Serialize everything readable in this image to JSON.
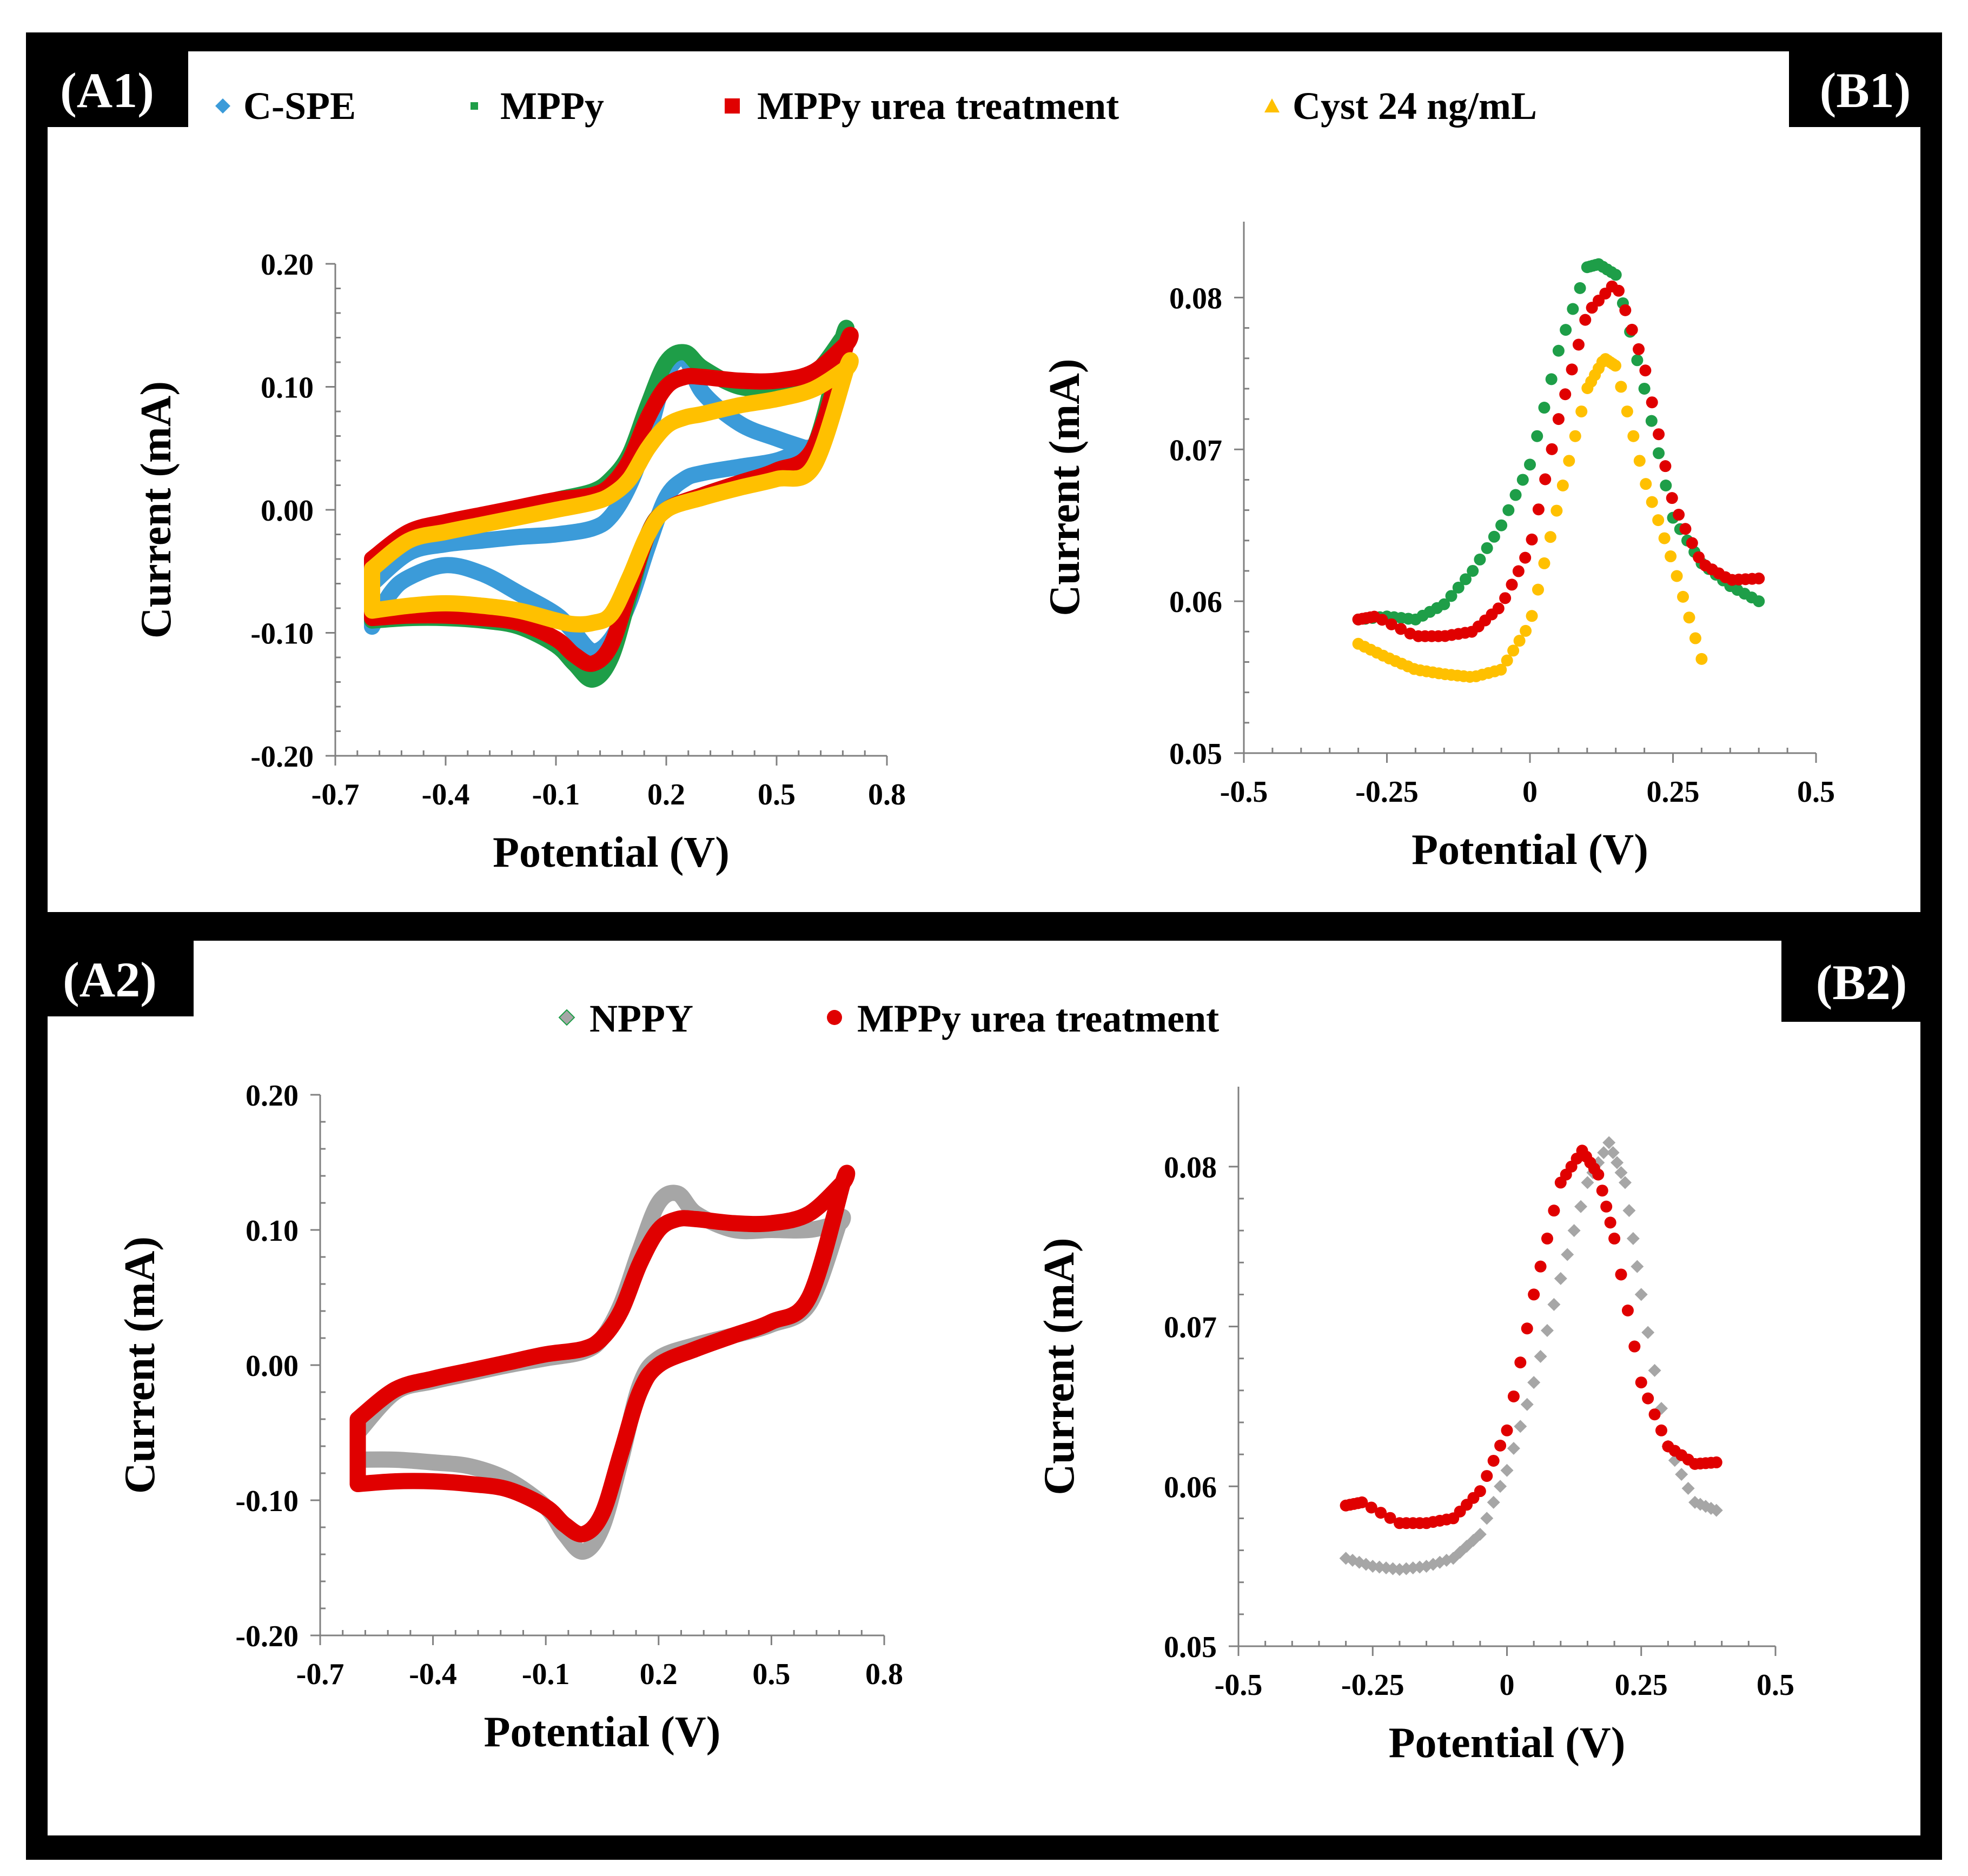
{
  "colors": {
    "C-SPE": "#3B9BD9",
    "MPPy": "#1E9E48",
    "MPPy urea treatment": "#E00000",
    "Cyst 24 ng/mL": "#FFC000",
    "NPPY": "#A6A6A6",
    "frame": "#000000"
  },
  "panels": {
    "A1": {
      "label": "(A1)"
    },
    "B1": {
      "label": "(B1)"
    },
    "A2": {
      "label": "(A2)"
    },
    "B2": {
      "label": "(B2)"
    }
  },
  "legend_top": [
    {
      "name": "C-SPE",
      "marker": "diamond"
    },
    {
      "name": "MPPy",
      "marker": "square-small"
    },
    {
      "name": "MPPy urea treatment",
      "marker": "square"
    },
    {
      "name": "Cyst 24 ng/mL",
      "marker": "triangle"
    }
  ],
  "legend_bottom": [
    {
      "name": "NPPY",
      "marker": "diamond"
    },
    {
      "name": "MPPy urea treatment",
      "marker": "circle"
    }
  ],
  "chart_data": [
    {
      "id": "A1",
      "type": "line",
      "xlabel": "Potential (V)",
      "ylabel": "Current (mA)",
      "xlim": [
        -0.7,
        0.8
      ],
      "ylim": [
        -0.2,
        0.2
      ],
      "xticks": [
        -0.7,
        -0.4,
        -0.1,
        0.2,
        0.5,
        0.8
      ],
      "xtick_labels": [
        "-0.7",
        "-0.4",
        "-0.1",
        "0.2",
        "0.5",
        "0.8"
      ],
      "yticks": [
        -0.2,
        -0.1,
        0.0,
        0.1,
        0.2
      ],
      "ytick_labels": [
        "-0.20",
        "-0.10",
        "0.00",
        "0.10",
        "0.20"
      ],
      "series": [
        {
          "name": "C-SPE",
          "x": [
            -0.6,
            -0.5,
            -0.4,
            -0.3,
            -0.2,
            -0.1,
            0.0,
            0.05,
            0.1,
            0.15,
            0.2,
            0.25,
            0.3,
            0.4,
            0.5,
            0.58,
            0.58,
            0.5,
            0.4,
            0.3,
            0.25,
            0.2,
            0.15,
            0.1,
            0.05,
            0.0,
            -0.05,
            -0.1,
            -0.2,
            -0.3,
            -0.4,
            -0.5,
            -0.55,
            -0.6
          ],
          "y": [
            -0.06,
            -0.035,
            -0.028,
            -0.025,
            -0.022,
            -0.02,
            -0.015,
            -0.005,
            0.02,
            0.06,
            0.11,
            0.123,
            0.095,
            0.07,
            0.058,
            0.05,
            0.05,
            0.04,
            0.035,
            0.03,
            0.025,
            0.01,
            -0.03,
            -0.075,
            -0.105,
            -0.115,
            -0.1,
            -0.085,
            -0.068,
            -0.052,
            -0.045,
            -0.055,
            -0.068,
            -0.095
          ]
        },
        {
          "name": "MPPy",
          "x": [
            -0.6,
            -0.5,
            -0.4,
            -0.3,
            -0.2,
            -0.1,
            0.0,
            0.05,
            0.1,
            0.15,
            0.2,
            0.25,
            0.3,
            0.4,
            0.5,
            0.6,
            0.68,
            0.68,
            0.6,
            0.5,
            0.4,
            0.3,
            0.2,
            0.15,
            0.1,
            0.05,
            0.0,
            -0.05,
            -0.1,
            -0.2,
            -0.3,
            -0.4,
            -0.5,
            -0.6
          ],
          "y": [
            -0.045,
            -0.02,
            -0.012,
            -0.005,
            0.0,
            0.008,
            0.015,
            0.025,
            0.045,
            0.085,
            0.12,
            0.128,
            0.115,
            0.1,
            0.1,
            0.11,
            0.14,
            0.14,
            0.05,
            0.032,
            0.022,
            0.012,
            0.0,
            -0.02,
            -0.07,
            -0.12,
            -0.138,
            -0.125,
            -0.11,
            -0.095,
            -0.09,
            -0.088,
            -0.088,
            -0.09
          ]
        },
        {
          "name": "MPPy urea treatment",
          "x": [
            -0.6,
            -0.5,
            -0.4,
            -0.3,
            -0.2,
            -0.1,
            0.0,
            0.05,
            0.1,
            0.15,
            0.2,
            0.25,
            0.3,
            0.4,
            0.5,
            0.6,
            0.69,
            0.69,
            0.6,
            0.5,
            0.4,
            0.3,
            0.2,
            0.15,
            0.1,
            0.05,
            0.0,
            -0.05,
            -0.1,
            -0.2,
            -0.3,
            -0.4,
            -0.5,
            -0.6
          ],
          "y": [
            -0.04,
            -0.018,
            -0.01,
            -0.004,
            0.002,
            0.008,
            0.012,
            0.02,
            0.04,
            0.075,
            0.1,
            0.108,
            0.108,
            0.105,
            0.105,
            0.112,
            0.135,
            0.135,
            0.05,
            0.032,
            0.022,
            0.012,
            0.0,
            -0.02,
            -0.065,
            -0.11,
            -0.125,
            -0.118,
            -0.105,
            -0.092,
            -0.088,
            -0.086,
            -0.086,
            -0.088
          ]
        },
        {
          "name": "Cyst 24 ng/mL",
          "x": [
            -0.6,
            -0.5,
            -0.4,
            -0.3,
            -0.2,
            -0.1,
            0.0,
            0.05,
            0.1,
            0.15,
            0.2,
            0.25,
            0.3,
            0.4,
            0.5,
            0.6,
            0.69,
            0.69,
            0.6,
            0.5,
            0.4,
            0.3,
            0.2,
            0.15,
            0.1,
            0.05,
            0.0,
            -0.05,
            -0.1,
            -0.2,
            -0.3,
            -0.4,
            -0.5,
            -0.6
          ],
          "y": [
            -0.048,
            -0.025,
            -0.018,
            -0.012,
            -0.006,
            0.0,
            0.006,
            0.012,
            0.025,
            0.05,
            0.068,
            0.075,
            0.078,
            0.085,
            0.09,
            0.098,
            0.115,
            0.115,
            0.035,
            0.025,
            0.018,
            0.01,
            0.0,
            -0.02,
            -0.055,
            -0.085,
            -0.092,
            -0.093,
            -0.09,
            -0.082,
            -0.078,
            -0.076,
            -0.078,
            -0.082
          ]
        }
      ]
    },
    {
      "id": "B1",
      "type": "scatter",
      "xlabel": "Potential (V)",
      "ylabel": "Current (mA)",
      "xlim": [
        -0.5,
        0.5
      ],
      "ylim": [
        0.05,
        0.085
      ],
      "xticks": [
        -0.5,
        -0.25,
        0,
        0.25,
        0.5
      ],
      "xtick_labels": [
        "-0.5",
        "-0.25",
        "0",
        "0.25",
        "0.5"
      ],
      "yticks": [
        0.05,
        0.06,
        0.07,
        0.08
      ],
      "ytick_labels": [
        "0.05",
        "0.06",
        "0.07",
        "0.08"
      ],
      "series": [
        {
          "name": "MPPy",
          "x": [
            -0.3,
            -0.25,
            -0.2,
            -0.15,
            -0.1,
            -0.05,
            0.0,
            0.05,
            0.1,
            0.12,
            0.15,
            0.2,
            0.25,
            0.3,
            0.35,
            0.4
          ],
          "y": [
            0.0588,
            0.059,
            0.0588,
            0.0598,
            0.062,
            0.065,
            0.069,
            0.0765,
            0.082,
            0.0822,
            0.0815,
            0.074,
            0.0655,
            0.0625,
            0.061,
            0.06
          ]
        },
        {
          "name": "MPPy urea treatment",
          "x": [
            -0.3,
            -0.27,
            -0.2,
            -0.15,
            -0.1,
            -0.05,
            0.0,
            0.05,
            0.1,
            0.15,
            0.2,
            0.25,
            0.3,
            0.35,
            0.4
          ],
          "y": [
            0.0588,
            0.059,
            0.0577,
            0.0577,
            0.058,
            0.0597,
            0.0635,
            0.072,
            0.079,
            0.081,
            0.0755,
            0.0665,
            0.0625,
            0.0614,
            0.0615
          ]
        },
        {
          "name": "Cyst 24 ng/mL",
          "x": [
            -0.3,
            -0.25,
            -0.2,
            -0.15,
            -0.1,
            -0.05,
            0.0,
            0.05,
            0.1,
            0.13,
            0.15,
            0.2,
            0.25,
            0.3
          ],
          "y": [
            0.0572,
            0.0563,
            0.0555,
            0.0552,
            0.055,
            0.0555,
            0.0585,
            0.0665,
            0.074,
            0.076,
            0.0755,
            0.068,
            0.0625,
            0.0562
          ]
        }
      ]
    },
    {
      "id": "A2",
      "type": "line",
      "xlabel": "Potential (V)",
      "ylabel": "Current (mA)",
      "xlim": [
        -0.7,
        0.8
      ],
      "ylim": [
        -0.2,
        0.2
      ],
      "xticks": [
        -0.7,
        -0.4,
        -0.1,
        0.2,
        0.5,
        0.8
      ],
      "xtick_labels": [
        "-0.7",
        "-0.4",
        "-0.1",
        "0.2",
        "0.5",
        "0.8"
      ],
      "yticks": [
        -0.2,
        -0.1,
        0.0,
        0.1,
        0.2
      ],
      "ytick_labels": [
        "-0.20",
        "-0.10",
        "0.00",
        "0.10",
        "0.20"
      ],
      "series": [
        {
          "name": "NPPY",
          "x": [
            -0.6,
            -0.5,
            -0.4,
            -0.3,
            -0.2,
            -0.1,
            0.0,
            0.05,
            0.1,
            0.15,
            0.2,
            0.25,
            0.3,
            0.4,
            0.5,
            0.6,
            0.68,
            0.68,
            0.6,
            0.5,
            0.4,
            0.3,
            0.2,
            0.15,
            0.1,
            0.05,
            0.0,
            -0.05,
            -0.1,
            -0.2,
            -0.3,
            -0.4,
            -0.5,
            -0.6
          ],
          "y": [
            -0.05,
            -0.02,
            -0.012,
            -0.006,
            0.0,
            0.005,
            0.01,
            0.02,
            0.045,
            0.085,
            0.12,
            0.127,
            0.112,
            0.1,
            0.1,
            0.1,
            0.105,
            0.105,
            0.045,
            0.03,
            0.022,
            0.015,
            0.005,
            -0.015,
            -0.07,
            -0.12,
            -0.138,
            -0.125,
            -0.105,
            -0.085,
            -0.075,
            -0.072,
            -0.07,
            -0.07
          ]
        },
        {
          "name": "MPPy urea treatment",
          "x": [
            -0.6,
            -0.5,
            -0.4,
            -0.3,
            -0.2,
            -0.1,
            0.0,
            0.05,
            0.1,
            0.15,
            0.2,
            0.25,
            0.3,
            0.4,
            0.5,
            0.6,
            0.69,
            0.69,
            0.6,
            0.5,
            0.4,
            0.3,
            0.2,
            0.15,
            0.1,
            0.05,
            0.0,
            -0.05,
            -0.1,
            -0.2,
            -0.3,
            -0.4,
            -0.5,
            -0.6
          ],
          "y": [
            -0.04,
            -0.018,
            -0.01,
            -0.004,
            0.002,
            0.008,
            0.012,
            0.02,
            0.04,
            0.075,
            0.1,
            0.108,
            0.108,
            0.105,
            0.105,
            0.112,
            0.135,
            0.135,
            0.05,
            0.032,
            0.022,
            0.012,
            0.0,
            -0.02,
            -0.065,
            -0.11,
            -0.125,
            -0.118,
            -0.105,
            -0.092,
            -0.088,
            -0.086,
            -0.086,
            -0.088
          ]
        }
      ]
    },
    {
      "id": "B2",
      "type": "scatter",
      "xlabel": "Potential (V)",
      "ylabel": "Current (mA)",
      "xlim": [
        -0.5,
        0.5
      ],
      "ylim": [
        0.05,
        0.085
      ],
      "xticks": [
        -0.5,
        -0.25,
        0,
        0.25,
        0.5
      ],
      "xtick_labels": [
        "-0.5",
        "-0.25",
        "0",
        "0.25",
        "0.5"
      ],
      "yticks": [
        0.05,
        0.06,
        0.07,
        0.08
      ],
      "ytick_labels": [
        "0.05",
        "0.06",
        "0.07",
        "0.08"
      ],
      "series": [
        {
          "name": "NPPY",
          "x": [
            -0.3,
            -0.25,
            -0.2,
            -0.15,
            -0.1,
            -0.05,
            0.0,
            0.05,
            0.1,
            0.15,
            0.19,
            0.22,
            0.25,
            0.3,
            0.35,
            0.39
          ],
          "y": [
            0.0555,
            0.055,
            0.0548,
            0.055,
            0.0555,
            0.057,
            0.061,
            0.0665,
            0.073,
            0.079,
            0.0815,
            0.079,
            0.072,
            0.0625,
            0.059,
            0.0585
          ]
        },
        {
          "name": "MPPy urea treatment",
          "x": [
            -0.3,
            -0.27,
            -0.2,
            -0.15,
            -0.1,
            -0.05,
            0.0,
            0.05,
            0.1,
            0.14,
            0.17,
            0.2,
            0.25,
            0.3,
            0.35,
            0.39
          ],
          "y": [
            0.0588,
            0.059,
            0.0577,
            0.0577,
            0.058,
            0.0597,
            0.0635,
            0.072,
            0.079,
            0.081,
            0.0795,
            0.0755,
            0.0665,
            0.0625,
            0.0614,
            0.0615
          ]
        }
      ]
    }
  ]
}
